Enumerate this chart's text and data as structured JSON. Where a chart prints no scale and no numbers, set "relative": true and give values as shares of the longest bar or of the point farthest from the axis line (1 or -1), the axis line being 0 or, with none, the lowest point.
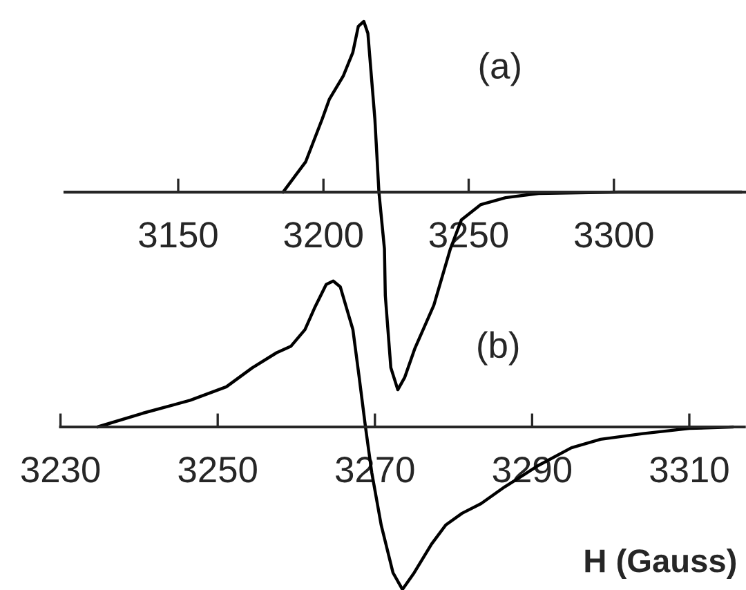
{
  "chart_data": [
    {
      "type": "line",
      "relative": true,
      "tick_labels": "x",
      "xlim": [
        3111,
        3345
      ],
      "xticks": [
        3150,
        3200,
        3250,
        3300
      ],
      "annotations": [
        "(a)"
      ],
      "x": [
        3186.1,
        3193.9,
        3199.6,
        3202,
        3206.8,
        3210.1,
        3212,
        3213.9,
        3215.3,
        3217.7,
        3219.1,
        3221,
        3221.3,
        3223.2,
        3225.6,
        3228,
        3231.5,
        3238,
        3243.7,
        3247.5,
        3254.2,
        3262.7,
        3274.1,
        3301.7,
        3344
      ],
      "series": [
        {
          "color": "#000000",
          "values": [
            0,
            0.154,
            0.371,
            0.469,
            0.587,
            0.706,
            0.839,
            0.864,
            0.804,
            0.371,
            0,
            -0.287,
            -0.524,
            -0.888,
            -1,
            -0.937,
            -0.79,
            -0.573,
            -0.287,
            -0.14,
            -0.063,
            -0.028,
            -0.007,
            0,
            0
          ]
        }
      ]
    },
    {
      "type": "line",
      "relative": true,
      "tick_labels": "x",
      "xlim": [
        3230,
        3317
      ],
      "xticks": [
        3230,
        3250,
        3270,
        3290,
        3310
      ],
      "annotations": [
        "(b)"
      ],
      "xlabel": "H (Gauss)",
      "x": [
        3234.7,
        3240.5,
        3246.5,
        3251.1,
        3254.4,
        3257.5,
        3259.3,
        3261.1,
        3262.3,
        3263.8,
        3264.7,
        3265.6,
        3267.2,
        3268,
        3268.8,
        3269.6,
        3270.8,
        3272.3,
        3273.5,
        3275,
        3277.2,
        3279,
        3281.1,
        3283.5,
        3286.5,
        3290.8,
        3295,
        3298.7,
        3304.1,
        3310,
        3315.6
      ],
      "series": [
        {
          "color": "#000000",
          "values": [
            0,
            0.085,
            0.164,
            0.247,
            0.364,
            0.457,
            0.496,
            0.599,
            0.73,
            0.877,
            0.898,
            0.862,
            0.599,
            0.305,
            0,
            -0.281,
            -0.604,
            -0.897,
            -1,
            -0.897,
            -0.721,
            -0.604,
            -0.531,
            -0.472,
            -0.369,
            -0.237,
            -0.128,
            -0.076,
            -0.041,
            -0.009,
            0
          ]
        }
      ]
    }
  ]
}
